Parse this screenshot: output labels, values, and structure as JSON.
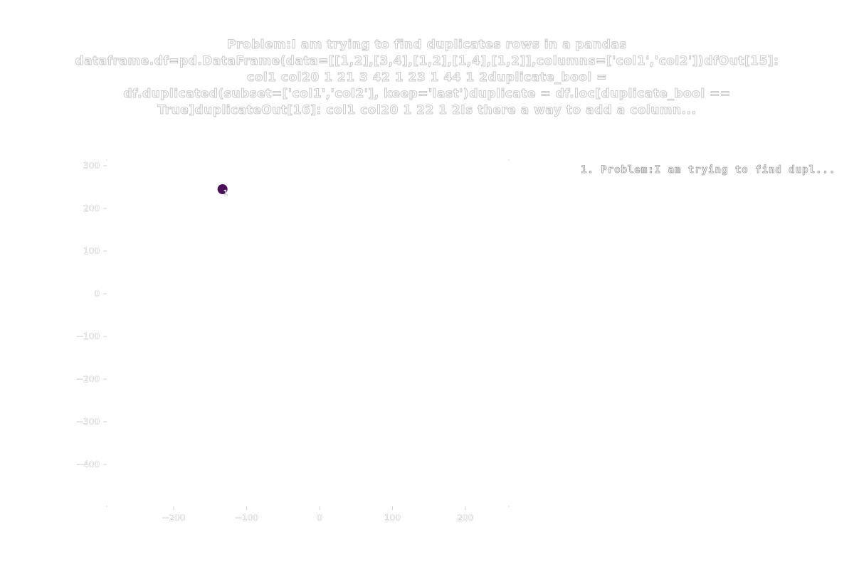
{
  "chart_data": {
    "type": "scatter",
    "title_lines": [
      "Problem:I am trying to find duplicates rows in a pandas",
      "dataframe.df=pd.DataFrame(data=[[1,2],[3,4],[1,2],[1,4],[1,2]],columns=['col1','col2'])dfOut[15]:",
      "col1  col20      1      21      3      42      1      23      1      44      1      2duplicate_bool =",
      "df.duplicated(subset=['col1','col2'], keep='last')duplicate = df.loc[duplicate_bool ==",
      "True]duplicateOut[16]:      col1  col20      1      22      1      2Is there a way to add a column..."
    ],
    "x_ticks": [
      -200,
      -100,
      0,
      100,
      200
    ],
    "y_ticks": [
      300,
      200,
      100,
      0,
      -100,
      -200,
      -300,
      -400
    ],
    "x_tick_labels": [
      "−200",
      "−100",
      "0",
      "100",
      "200"
    ],
    "y_tick_labels": [
      "300",
      "200",
      "100",
      "0",
      "−100",
      "−200",
      "−300",
      "−400"
    ],
    "points": [
      {
        "x": -133,
        "y": 245,
        "label": "1",
        "color": "#4b0f5c"
      }
    ],
    "legend": {
      "placement": "top-right",
      "entries": [
        "1. Problem:I am trying to find dupl..."
      ]
    }
  }
}
